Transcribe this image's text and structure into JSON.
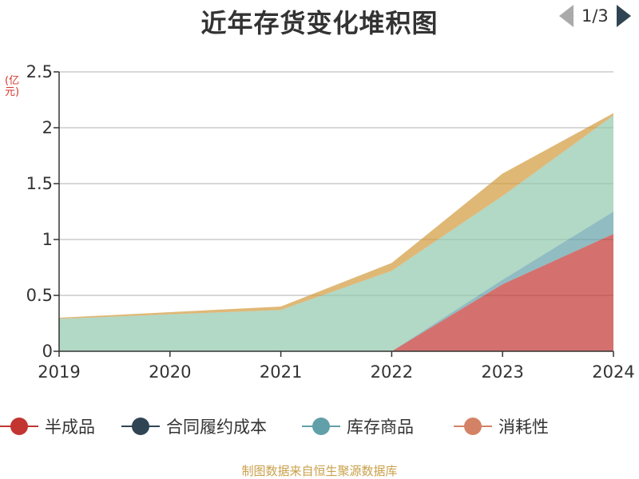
{
  "chart_data": {
    "type": "area",
    "stacked": true,
    "title": "近年存货变化堆积图",
    "ylabel": "(亿元)",
    "xlabel": "",
    "categories": [
      "2019",
      "2020",
      "2021",
      "2022",
      "2023",
      "2024"
    ],
    "ylim": [
      0,
      2.5
    ],
    "yticks": [
      "0",
      "0.5",
      "1",
      "1.5",
      "2",
      "2.5"
    ],
    "grid": true,
    "legend_position": "bottom",
    "series": [
      {
        "name": "半成品",
        "values": [
          0,
          0,
          0,
          0,
          0.6,
          1.05
        ],
        "color": "#c23531"
      },
      {
        "name": "合同履约成本",
        "values": [
          0,
          0,
          0,
          0,
          0,
          0
        ],
        "color": "#2f4554"
      },
      {
        "name": "库存商品",
        "values": [
          0,
          0,
          0,
          0,
          0.04,
          0.2
        ],
        "color": "#61a0a8"
      },
      {
        "name": "消耗性",
        "values": [
          0,
          0,
          0,
          0,
          0,
          0
        ],
        "color": "#d48265"
      },
      {
        "name": "",
        "values": [
          0.29,
          0.33,
          0.37,
          0.72,
          0.75,
          0.86
        ],
        "color": "#91c7ae"
      },
      {
        "name": "",
        "values": [
          0.01,
          0.02,
          0.03,
          0.07,
          0.2,
          0.02
        ],
        "color": "#d19a3c"
      }
    ],
    "legend_page": "1/3"
  },
  "footer": {
    "source": "制图数据来自恒生聚源数据库"
  }
}
